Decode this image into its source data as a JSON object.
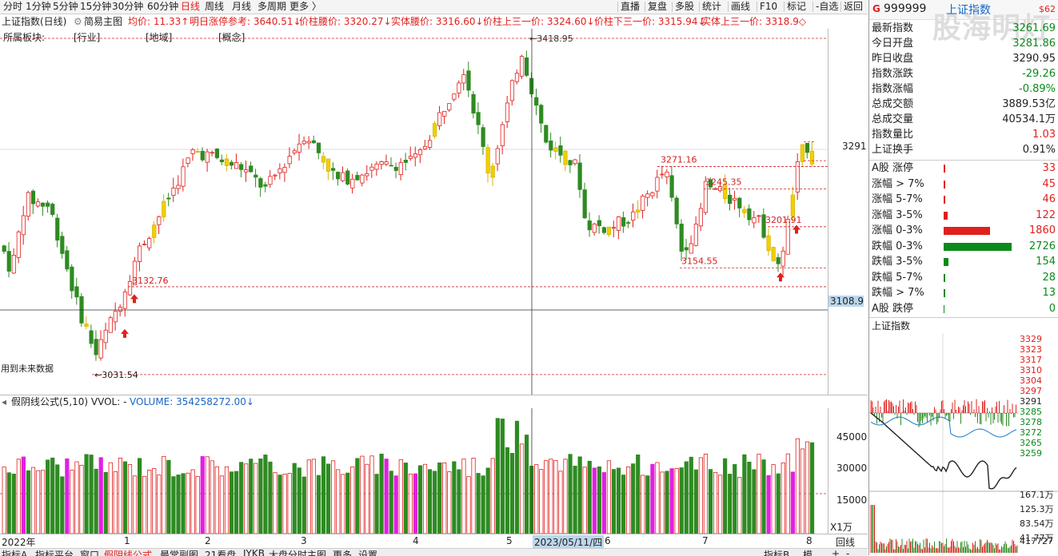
{
  "toolbar": {
    "left_items": [
      "分时",
      "1分钟",
      "5分钟",
      "15分钟",
      "30分钟",
      "60分钟",
      "日线",
      "周线",
      "月线",
      "多周期",
      "更多 〉"
    ],
    "active": "日线",
    "right_items": [
      "直播",
      "复盘",
      "多股",
      "统计",
      "画线",
      "F10",
      "标记",
      "-自选",
      "返回"
    ]
  },
  "infobar": {
    "index_name": "上证指数(日线)",
    "chart_mode": "简易主图",
    "items": [
      {
        "text": "均价: 11.33↑",
        "color": "#e0201f"
      },
      {
        "text": "明日涨停参考: 3640.51↓",
        "color": "#e0201f"
      },
      {
        "text": "价柱腰价: 3320.27↓",
        "color": "#e0201f"
      },
      {
        "text": "实体腰价: 3316.60↓",
        "color": "#e0201f"
      },
      {
        "text": "价柱上三一价: 3324.60↓",
        "color": "#e0201f"
      },
      {
        "text": "价柱下三一价: 3315.94↓",
        "color": "#e0201f"
      },
      {
        "text": "实体上三一价: 3318.9◇",
        "color": "#e0201f"
      }
    ]
  },
  "catbar": {
    "label": "所属板块:",
    "items": [
      "[行业]",
      "[地域]",
      "[概念]"
    ]
  },
  "annotations": {
    "high": "3418.95",
    "low": "3031.54",
    "a": "3132.76",
    "b": "3271.16",
    "c": "3245.35",
    "d": "3201.91",
    "e": "3154.55",
    "crosshair_value": "3108.9",
    "right_axis_value": "3291",
    "future_note": "用到未来数据"
  },
  "volume": {
    "header_left": "假阴线公式(5,10) VVOL: -",
    "header_right": "VOLUME: 354258272.00↓",
    "axis": [
      "45000",
      "30000",
      "15000"
    ],
    "unit": "X1万"
  },
  "date_axis": {
    "labels": [
      "2022年",
      "1",
      "2",
      "3",
      "4",
      "5",
      "2023/05/11/四",
      "6",
      "7",
      "8"
    ]
  },
  "bottom_tabs": [
    "指标A",
    "指标平台",
    "窗口",
    "假阴线公式",
    "最常副图",
    "21看盘",
    "JYKB",
    "大盘分时主图",
    "更多",
    "设置"
  ],
  "bottom_right": [
    "指标B",
    "模",
    "+",
    "-",
    "回线"
  ],
  "right_panel": {
    "code": "999999",
    "name": "上证指数",
    "tag": "$62",
    "logo": "股海明灯",
    "quote": [
      {
        "label": "最新指数",
        "value": "3261.69",
        "color": "#0a8a1a"
      },
      {
        "label": "今日开盘",
        "value": "3281.86",
        "color": "#0a8a1a"
      },
      {
        "label": "昨日收盘",
        "value": "3290.95",
        "color": "#222"
      },
      {
        "label": "指数涨跌",
        "value": "-29.26",
        "color": "#0a8a1a"
      },
      {
        "label": "指数涨幅",
        "value": "-0.89%",
        "color": "#0a8a1a"
      },
      {
        "label": "总成交额",
        "value": "3889.53亿",
        "color": "#222"
      },
      {
        "label": "总成交量",
        "value": "40534.1万",
        "color": "#222"
      },
      {
        "label": "指数量比",
        "value": "1.03",
        "color": "#e0201f"
      },
      {
        "label": "上证换手",
        "value": "0.91%",
        "color": "#222"
      }
    ],
    "breadth": [
      {
        "label": "A股 涨停",
        "value": "33",
        "color": "#e0201f",
        "ratio": 0.012
      },
      {
        "label": "涨幅 > 7%",
        "value": "45",
        "color": "#e0201f",
        "ratio": 0.016
      },
      {
        "label": "涨幅 5-7%",
        "value": "46",
        "color": "#e0201f",
        "ratio": 0.017
      },
      {
        "label": "涨幅 3-5%",
        "value": "122",
        "color": "#e0201f",
        "ratio": 0.045
      },
      {
        "label": "涨幅 0-3%",
        "value": "1860",
        "color": "#e0201f",
        "ratio": 0.68
      },
      {
        "label": "跌幅 0-3%",
        "value": "2726",
        "color": "#0a8a1a",
        "ratio": 1.0
      },
      {
        "label": "跌幅 3-5%",
        "value": "154",
        "color": "#0a8a1a",
        "ratio": 0.056
      },
      {
        "label": "跌幅 5-7%",
        "value": "28",
        "color": "#0a8a1a",
        "ratio": 0.01
      },
      {
        "label": "跌幅 > 7%",
        "value": "13",
        "color": "#0a8a1a",
        "ratio": 0.005
      },
      {
        "label": "A股 跌停",
        "value": "0",
        "color": "#0a8a1a",
        "ratio": 0
      }
    ],
    "mini_title": "上证指数",
    "mini_axis": [
      "3329",
      "3323",
      "3317",
      "3310",
      "3304",
      "3297",
      "3291",
      "3285",
      "3278",
      "3272",
      "3265",
      "3259"
    ],
    "mini_vol_axis": [
      "167.1万",
      "125.3万",
      "83.54万",
      "41.77万"
    ],
    "mini_bottom": "417727"
  }
}
